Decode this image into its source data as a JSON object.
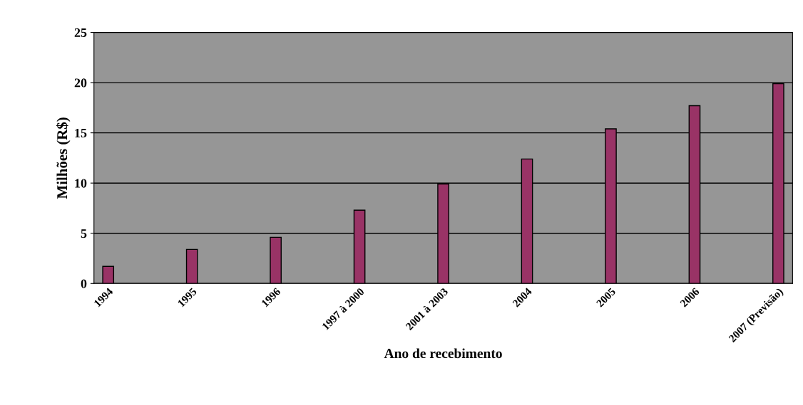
{
  "chart_data": {
    "type": "bar",
    "xlabel": "Ano de recebimento",
    "ylabel": "Milhões (R$)",
    "categories": [
      "1994",
      "1995",
      "1996",
      "1997 à 2000",
      "2001 à 2003",
      "2004",
      "2005",
      "2006",
      "2007 (Previsão)"
    ],
    "values": [
      1.7,
      3.4,
      4.6,
      7.3,
      9.9,
      12.4,
      15.4,
      17.7,
      19.9
    ],
    "color": "#993366",
    "ylim": [
      0,
      25
    ],
    "yticks": [
      0,
      5,
      10,
      15,
      20,
      25
    ],
    "grid": "y",
    "legend": false
  }
}
